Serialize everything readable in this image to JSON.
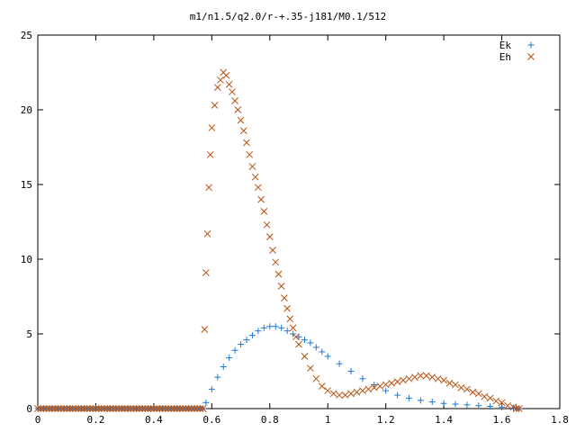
{
  "chart_data": {
    "type": "scatter",
    "title": "m1/n1.5/q2.0/r-+.35-j181/M0.1/512",
    "xlabel": "",
    "ylabel": "",
    "xlim": [
      0,
      1.8
    ],
    "ylim": [
      0,
      25
    ],
    "x_ticks": [
      "0",
      "0.2",
      "0.4",
      "0.6",
      "0.8",
      "1",
      "1.2",
      "1.4",
      "1.6",
      "1.8"
    ],
    "y_ticks": [
      "0",
      "5",
      "10",
      "15",
      "20",
      "25"
    ],
    "grid": false,
    "legend_position": "top-right",
    "series": [
      {
        "name": "Ek",
        "marker": "plus",
        "color": "#1f77d4",
        "x": [
          0.58,
          0.6,
          0.62,
          0.64,
          0.66,
          0.68,
          0.7,
          0.72,
          0.74,
          0.76,
          0.78,
          0.8,
          0.82,
          0.84,
          0.86,
          0.88,
          0.9,
          0.92,
          0.94,
          0.96,
          0.98,
          1.0,
          1.04,
          1.08,
          1.12,
          1.16,
          1.2,
          1.24,
          1.28,
          1.32,
          1.36,
          1.4,
          1.44,
          1.48,
          1.52,
          1.56,
          1.6,
          1.64
        ],
        "y": [
          0.4,
          1.3,
          2.1,
          2.8,
          3.4,
          3.9,
          4.3,
          4.6,
          4.9,
          5.2,
          5.4,
          5.5,
          5.5,
          5.4,
          5.2,
          5.0,
          4.8,
          4.6,
          4.4,
          4.1,
          3.8,
          3.5,
          3.0,
          2.5,
          2.0,
          1.6,
          1.2,
          0.9,
          0.7,
          0.55,
          0.45,
          0.35,
          0.3,
          0.25,
          0.2,
          0.15,
          0.1,
          0.05
        ]
      },
      {
        "name": "Eh",
        "marker": "cross",
        "color": "#b8500e",
        "x": [
          0.575,
          0.58,
          0.585,
          0.59,
          0.595,
          0.6,
          0.61,
          0.62,
          0.63,
          0.64,
          0.65,
          0.66,
          0.67,
          0.68,
          0.69,
          0.7,
          0.71,
          0.72,
          0.73,
          0.74,
          0.75,
          0.76,
          0.77,
          0.78,
          0.79,
          0.8,
          0.81,
          0.82,
          0.83,
          0.84,
          0.85,
          0.86,
          0.87,
          0.88,
          0.89,
          0.9,
          0.92,
          0.94,
          0.96,
          0.98,
          1.0,
          1.02,
          1.04,
          1.06,
          1.08,
          1.1,
          1.12,
          1.14,
          1.16,
          1.18,
          1.2,
          1.22,
          1.24,
          1.26,
          1.28,
          1.3,
          1.32,
          1.34,
          1.36,
          1.38,
          1.4,
          1.42,
          1.44,
          1.46,
          1.48,
          1.5,
          1.52,
          1.54,
          1.56,
          1.58,
          1.6,
          1.62,
          1.64
        ],
        "y": [
          5.3,
          9.1,
          11.7,
          14.8,
          17.0,
          18.8,
          20.3,
          21.5,
          22.0,
          22.5,
          22.3,
          21.7,
          21.2,
          20.6,
          20.0,
          19.3,
          18.6,
          17.8,
          17.0,
          16.2,
          15.5,
          14.8,
          14.0,
          13.2,
          12.3,
          11.5,
          10.6,
          9.8,
          9.0,
          8.2,
          7.4,
          6.7,
          6.0,
          5.4,
          4.8,
          4.3,
          3.5,
          2.7,
          2.0,
          1.5,
          1.2,
          1.0,
          0.9,
          0.9,
          1.0,
          1.1,
          1.2,
          1.3,
          1.4,
          1.5,
          1.6,
          1.7,
          1.8,
          1.9,
          2.0,
          2.1,
          2.2,
          2.2,
          2.1,
          2.0,
          1.9,
          1.7,
          1.6,
          1.4,
          1.3,
          1.1,
          1.0,
          0.8,
          0.7,
          0.5,
          0.4,
          0.2,
          0.1
        ]
      }
    ]
  }
}
